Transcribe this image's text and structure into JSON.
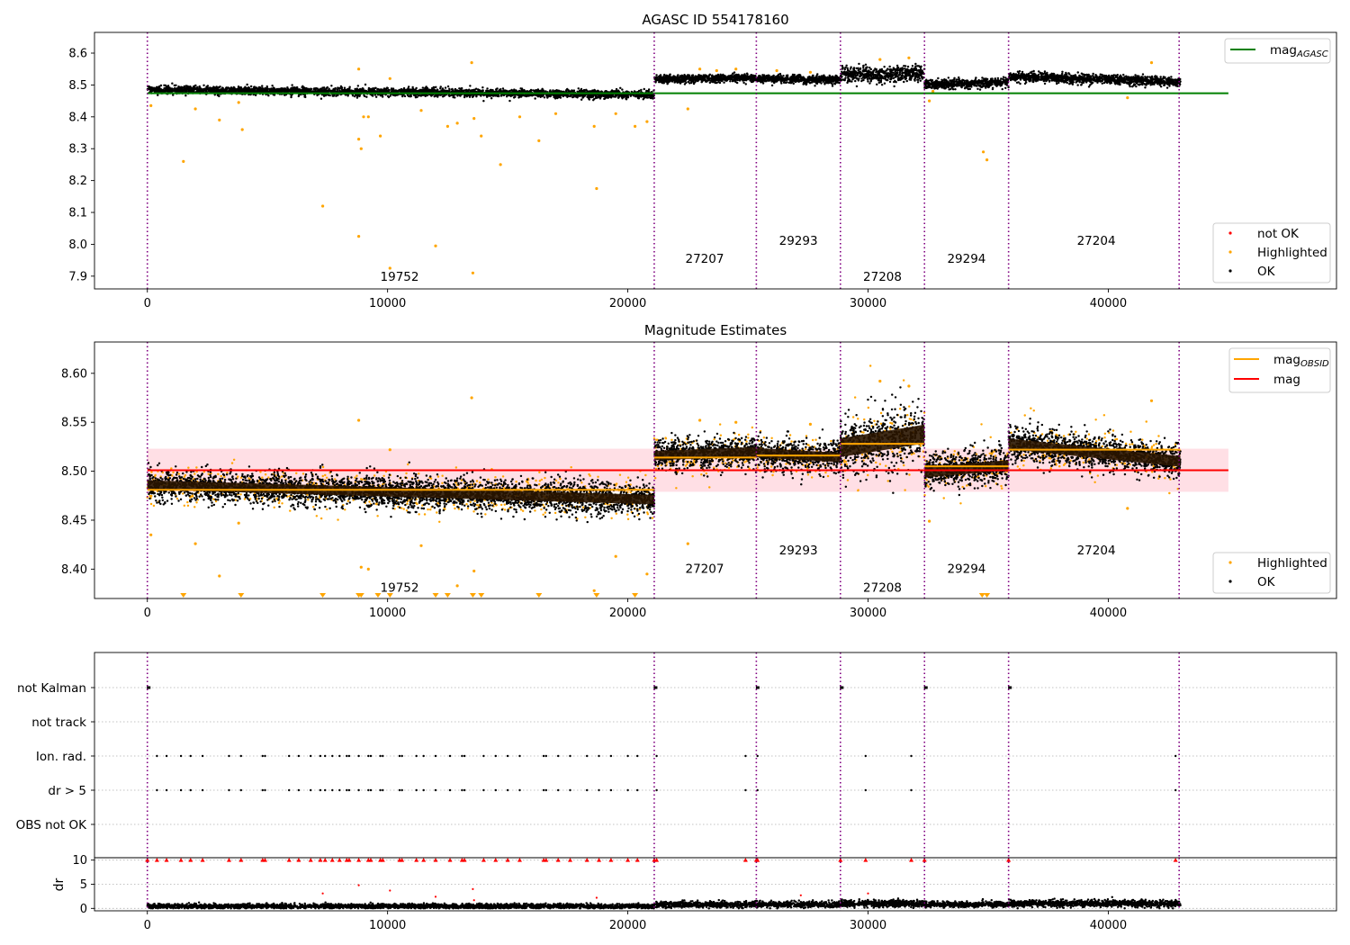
{
  "colors": {
    "ok": "#000000",
    "highlighted": "#ffa500",
    "not_ok": "#ff0000",
    "mag_agasc": "#008000",
    "mag": "#ff0000",
    "mag_band": "#ffc0cb",
    "mag_obsid": "#ffa500",
    "boundary": "#800080",
    "grid": "#b0b0b0"
  },
  "chart_data": [
    {
      "type": "scatter",
      "title": "AGASC ID 554178160",
      "xlabel": "",
      "ylabel": "",
      "xlim": [
        -2200,
        49500
      ],
      "ylim": [
        7.86,
        8.665
      ],
      "xticks": [
        0,
        10000,
        20000,
        30000,
        40000
      ],
      "yticks": [
        7.9,
        8.0,
        8.1,
        8.2,
        8.3,
        8.4,
        8.5,
        8.6
      ],
      "ytick_labels": [
        "7.9",
        "8.0",
        "8.1",
        "8.2",
        "8.3",
        "8.4",
        "8.5",
        "8.6"
      ],
      "legends": [
        {
          "placement": "top-right",
          "entries": [
            {
              "label": "mag",
              "subscript": "AGASC",
              "color": "#008000",
              "marker": "line"
            }
          ]
        },
        {
          "placement": "lower-right",
          "entries": [
            {
              "label": "not OK",
              "color": "#ff0000",
              "marker": "dot"
            },
            {
              "label": "Highlighted",
              "color": "#ffa500",
              "marker": "dot"
            },
            {
              "label": "OK",
              "color": "#000000",
              "marker": "dot"
            }
          ]
        }
      ],
      "hlines": [
        {
          "y": 8.474,
          "x0": 0,
          "x1": 45000,
          "color": "#008000"
        }
      ],
      "obsid_labels": [
        {
          "text": "19752",
          "x": 10500,
          "y": 7.885
        },
        {
          "text": "27207",
          "x": 23200,
          "y": 7.942
        },
        {
          "text": "29293",
          "x": 27100,
          "y": 7.999
        },
        {
          "text": "27208",
          "x": 30600,
          "y": 7.885
        },
        {
          "text": "29294",
          "x": 34100,
          "y": 7.942
        },
        {
          "text": "27204",
          "x": 39500,
          "y": 7.999
        }
      ],
      "segments": [
        {
          "x0": 0,
          "x1": 21100,
          "y0": 8.485,
          "y1": 8.47,
          "sd": 0.006
        },
        {
          "x0": 21100,
          "x1": 25350,
          "y0": 8.518,
          "y1": 8.522,
          "sd": 0.006
        },
        {
          "x0": 25350,
          "x1": 28850,
          "y0": 8.52,
          "y1": 8.516,
          "sd": 0.006
        },
        {
          "x0": 28850,
          "x1": 32350,
          "y0": 8.53,
          "y1": 8.535,
          "sd": 0.012
        },
        {
          "x0": 32350,
          "x1": 35850,
          "y0": 8.502,
          "y1": 8.508,
          "sd": 0.007
        },
        {
          "x0": 35850,
          "x1": 43000,
          "y0": 8.527,
          "y1": 8.51,
          "sd": 0.007
        }
      ],
      "highlighted_points": [
        [
          150,
          8.435
        ],
        [
          1500,
          8.26
        ],
        [
          2000,
          8.425
        ],
        [
          3000,
          8.39
        ],
        [
          3800,
          8.445
        ],
        [
          3950,
          8.36
        ],
        [
          7300,
          8.12
        ],
        [
          8800,
          8.025
        ],
        [
          8800,
          8.33
        ],
        [
          8900,
          8.3
        ],
        [
          9200,
          8.4
        ],
        [
          9700,
          8.34
        ],
        [
          8800,
          8.55
        ],
        [
          9000,
          8.4
        ],
        [
          10100,
          8.52
        ],
        [
          10100,
          7.925
        ],
        [
          11400,
          8.42
        ],
        [
          12000,
          7.995
        ],
        [
          12500,
          8.37
        ],
        [
          12900,
          8.38
        ],
        [
          13500,
          8.57
        ],
        [
          13550,
          7.91
        ],
        [
          13600,
          8.395
        ],
        [
          13900,
          8.34
        ],
        [
          14700,
          8.25
        ],
        [
          15500,
          8.4
        ],
        [
          16300,
          8.325
        ],
        [
          17000,
          8.41
        ],
        [
          18600,
          8.37
        ],
        [
          18700,
          8.175
        ],
        [
          19500,
          8.41
        ],
        [
          20300,
          8.37
        ],
        [
          20800,
          8.385
        ],
        [
          22500,
          8.425
        ],
        [
          32550,
          8.45
        ],
        [
          32700,
          8.48
        ],
        [
          34800,
          8.29
        ],
        [
          34950,
          8.265
        ],
        [
          40800,
          8.46
        ],
        [
          23000,
          8.55
        ],
        [
          23700,
          8.545
        ],
        [
          24500,
          8.55
        ],
        [
          26200,
          8.545
        ],
        [
          27600,
          8.54
        ],
        [
          30500,
          8.58
        ],
        [
          31700,
          8.585
        ],
        [
          41800,
          8.57
        ]
      ]
    },
    {
      "type": "scatter",
      "title": "Magnitude Estimates",
      "xlabel": "",
      "ylabel": "",
      "xlim": [
        -2200,
        49500
      ],
      "ylim": [
        8.37,
        8.632
      ],
      "xticks": [
        0,
        10000,
        20000,
        30000,
        40000
      ],
      "yticks": [
        8.4,
        8.45,
        8.5,
        8.55,
        8.6
      ],
      "ytick_labels": [
        "8.40",
        "8.45",
        "8.50",
        "8.55",
        "8.60"
      ],
      "legends": [
        {
          "placement": "top-right",
          "entries": [
            {
              "label": "mag",
              "subscript": "OBSID",
              "color": "#ffa500",
              "marker": "line"
            },
            {
              "label": "mag",
              "subscript": "",
              "color": "#ff0000",
              "marker": "line"
            }
          ]
        },
        {
          "placement": "lower-right",
          "entries": [
            {
              "label": "Highlighted",
              "color": "#ffa500",
              "marker": "dot"
            },
            {
              "label": "OK",
              "color": "#000000",
              "marker": "dot"
            }
          ]
        }
      ],
      "mag_line": {
        "y": 8.501,
        "x0": 0,
        "x1": 45000,
        "band": [
          8.479,
          8.523
        ]
      },
      "obsid_means": [
        {
          "x0": 0,
          "x1": 21100,
          "y": 8.481
        },
        {
          "x0": 21100,
          "x1": 25350,
          "y": 8.514
        },
        {
          "x0": 25350,
          "x1": 28850,
          "y": 8.516
        },
        {
          "x0": 28850,
          "x1": 32350,
          "y": 8.528
        },
        {
          "x0": 32350,
          "x1": 35850,
          "y": 8.505
        },
        {
          "x0": 35850,
          "x1": 43000,
          "y": 8.522
        }
      ],
      "obsid_labels": [
        {
          "text": "19752",
          "x": 10500,
          "y": 8.377
        },
        {
          "text": "27207",
          "x": 23200,
          "y": 8.396
        },
        {
          "text": "29293",
          "x": 27100,
          "y": 8.415
        },
        {
          "text": "27208",
          "x": 30600,
          "y": 8.377
        },
        {
          "text": "29294",
          "x": 34100,
          "y": 8.396
        },
        {
          "text": "27204",
          "x": 39500,
          "y": 8.415
        }
      ],
      "segments": [
        {
          "x0": 0,
          "x1": 21100,
          "y0": 8.486,
          "y1": 8.471,
          "sd": 0.008
        },
        {
          "x0": 21100,
          "x1": 25350,
          "y0": 8.516,
          "y1": 8.52,
          "sd": 0.008
        },
        {
          "x0": 25350,
          "x1": 28850,
          "y0": 8.519,
          "y1": 8.514,
          "sd": 0.008
        },
        {
          "x0": 28850,
          "x1": 32350,
          "y0": 8.524,
          "y1": 8.538,
          "sd": 0.016
        },
        {
          "x0": 32350,
          "x1": 35850,
          "y0": 8.499,
          "y1": 8.506,
          "sd": 0.009
        },
        {
          "x0": 35850,
          "x1": 43000,
          "y0": 8.528,
          "y1": 8.51,
          "sd": 0.009
        }
      ],
      "highlighted_points": [
        [
          150,
          8.435
        ],
        [
          2000,
          8.426
        ],
        [
          3000,
          8.393
        ],
        [
          3800,
          8.447
        ],
        [
          8800,
          8.552
        ],
        [
          8900,
          8.402
        ],
        [
          9200,
          8.4
        ],
        [
          10100,
          8.522
        ],
        [
          11400,
          8.424
        ],
        [
          12900,
          8.383
        ],
        [
          13500,
          8.575
        ],
        [
          13600,
          8.398
        ],
        [
          18600,
          8.378
        ],
        [
          19500,
          8.413
        ],
        [
          20800,
          8.395
        ],
        [
          22500,
          8.426
        ],
        [
          32550,
          8.449
        ],
        [
          40800,
          8.462
        ],
        [
          30500,
          8.592
        ],
        [
          31700,
          8.587
        ],
        [
          41800,
          8.572
        ],
        [
          23000,
          8.552
        ],
        [
          24500,
          8.55
        ],
        [
          27600,
          8.548
        ]
      ],
      "below_range_markers": [
        1500,
        3900,
        7300,
        8800,
        8900,
        9600,
        10100,
        12000,
        12500,
        13550,
        13900,
        16300,
        18700,
        20300,
        34750,
        34950
      ]
    },
    {
      "type": "scatter",
      "title": "",
      "xlabel": "",
      "ylabel": "",
      "xlim": [
        -2200,
        49500
      ],
      "categories": [
        "not Kalman",
        "not track",
        "Ion. rad.",
        "dr > 5",
        "OBS not OK"
      ],
      "not_kalman_x": [
        0,
        21100,
        25350,
        28850,
        32350,
        35850
      ],
      "flag_x": [
        400,
        800,
        1400,
        1800,
        2300,
        3400,
        3900,
        4800,
        4900,
        5900,
        6300,
        6800,
        7200,
        7400,
        7700,
        8000,
        8300,
        8400,
        8800,
        9200,
        9300,
        9700,
        9800,
        10500,
        10600,
        11200,
        11500,
        12000,
        12600,
        13100,
        13200,
        14000,
        14500,
        15000,
        15500,
        16500,
        16600,
        17100,
        17600,
        18300,
        18800,
        19300,
        20000,
        20400,
        21200,
        24900,
        25400,
        29900,
        31800,
        42800
      ]
    },
    {
      "type": "scatter",
      "title": "",
      "xlabel": "",
      "ylabel": "dr",
      "xlim": [
        -2200,
        49500
      ],
      "ylim": [
        -0.5,
        10.5
      ],
      "yticks": [
        0,
        5,
        10
      ],
      "ytick_labels": [
        "0",
        "5",
        "10"
      ],
      "segments_dr": [
        {
          "x0": 0,
          "x1": 21100,
          "mean": 0.45,
          "sd": 0.25
        },
        {
          "x0": 21100,
          "x1": 25350,
          "mean": 0.75,
          "sd": 0.3
        },
        {
          "x0": 25350,
          "x1": 28850,
          "mean": 0.8,
          "sd": 0.3
        },
        {
          "x0": 28850,
          "x1": 32350,
          "mean": 1.0,
          "sd": 0.35
        },
        {
          "x0": 32350,
          "x1": 35850,
          "mean": 0.8,
          "sd": 0.3
        },
        {
          "x0": 35850,
          "x1": 43000,
          "mean": 1.0,
          "sd": 0.35
        }
      ],
      "outlier_points": [
        [
          7300,
          3.1
        ],
        [
          8800,
          4.8
        ],
        [
          10100,
          3.7
        ],
        [
          12000,
          2.4
        ],
        [
          13550,
          4.0
        ],
        [
          13600,
          1.7
        ],
        [
          18700,
          2.2
        ],
        [
          27200,
          2.7
        ],
        [
          30000,
          3.1
        ]
      ]
    }
  ]
}
